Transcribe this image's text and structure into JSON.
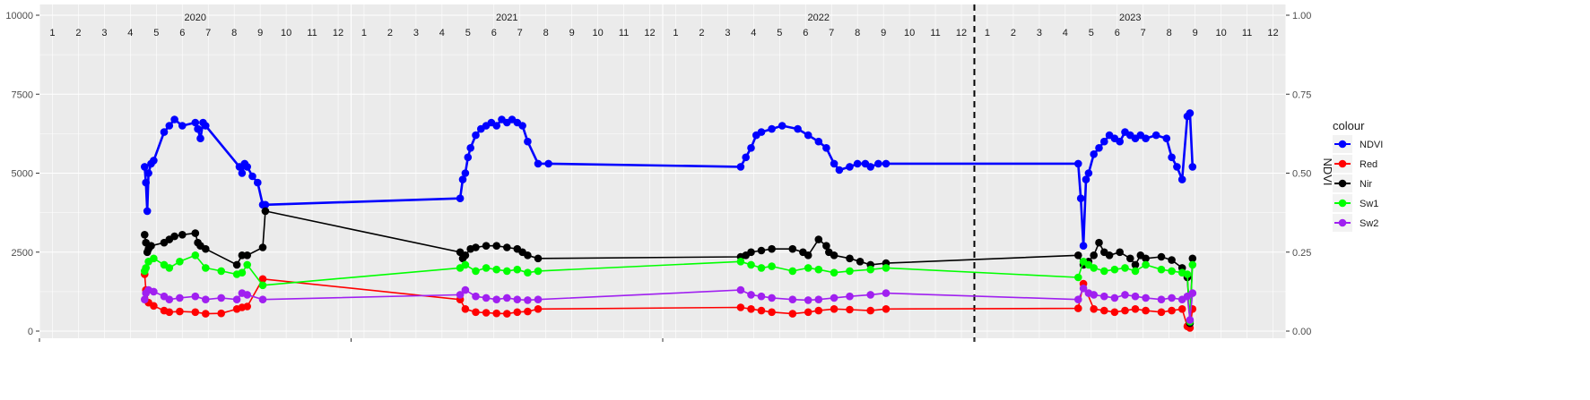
{
  "chart_data": {
    "type": "line",
    "title": "",
    "xlabel": "",
    "ylabel_left": "",
    "ylabel_right": "NDVI",
    "y_left_range": [
      0,
      10000
    ],
    "y_left_ticks": [
      "0",
      "2500",
      "5000",
      "7500",
      "10000"
    ],
    "y_right_ticks": [
      "0.00",
      "0.25",
      "0.50",
      "0.75",
      "1.00"
    ],
    "year_labels": [
      "2020",
      "2021",
      "2022",
      "2023"
    ],
    "month_labels": [
      "1",
      "2",
      "3",
      "4",
      "5",
      "6",
      "7",
      "8",
      "9",
      "10",
      "11",
      "12"
    ],
    "vline_month_index": 36,
    "grid": true,
    "legend": {
      "title": "colour",
      "position": "right",
      "entries": [
        {
          "label": "NDVI",
          "color": "#0000ff"
        },
        {
          "label": "Red",
          "color": "#ff0000"
        },
        {
          "label": "Nir",
          "color": "#000000"
        },
        {
          "label": "Sw1",
          "color": "#00ff00"
        },
        {
          "label": "Sw2",
          "color": "#a020f0"
        }
      ]
    },
    "x_unit": "months since Jan 2020",
    "series": [
      {
        "name": "NDVI",
        "color": "#0000ff",
        "x": [
          4.05,
          4.1,
          4.15,
          4.2,
          4.3,
          4.4,
          4.8,
          5.0,
          5.2,
          5.5,
          6.0,
          6.1,
          6.2,
          6.3,
          6.4,
          7.7,
          7.8,
          7.9,
          8.0,
          8.2,
          8.4,
          8.6,
          8.7,
          16.2,
          16.3,
          16.4,
          16.5,
          16.6,
          16.8,
          17.0,
          17.2,
          17.4,
          17.6,
          17.8,
          18.0,
          18.2,
          18.4,
          18.6,
          18.8,
          19.2,
          19.6,
          27.0,
          27.2,
          27.4,
          27.6,
          27.8,
          28.2,
          28.6,
          29.2,
          29.6,
          30.0,
          30.3,
          30.6,
          30.8,
          31.2,
          31.5,
          31.8,
          32.0,
          32.3,
          32.6,
          40.0,
          40.1,
          40.2,
          40.3,
          40.4,
          40.6,
          40.8,
          41.0,
          41.2,
          41.4,
          41.6,
          41.8,
          42.0,
          42.2,
          42.4,
          42.6,
          43.0,
          43.4,
          43.6,
          43.8,
          44.0,
          44.2,
          44.3,
          44.4
        ],
        "values": [
          0.52,
          0.47,
          0.38,
          0.5,
          0.53,
          0.54,
          0.63,
          0.65,
          0.67,
          0.65,
          0.66,
          0.64,
          0.61,
          0.66,
          0.65,
          0.52,
          0.5,
          0.53,
          0.52,
          0.49,
          0.47,
          0.4,
          0.4,
          0.42,
          0.48,
          0.5,
          0.55,
          0.58,
          0.62,
          0.64,
          0.65,
          0.66,
          0.65,
          0.67,
          0.66,
          0.67,
          0.66,
          0.65,
          0.6,
          0.53,
          0.53,
          0.52,
          0.55,
          0.58,
          0.62,
          0.63,
          0.64,
          0.65,
          0.64,
          0.62,
          0.6,
          0.58,
          0.53,
          0.51,
          0.52,
          0.53,
          0.53,
          0.52,
          0.53,
          0.53,
          0.53,
          0.42,
          0.27,
          0.48,
          0.5,
          0.56,
          0.58,
          0.6,
          0.62,
          0.61,
          0.6,
          0.63,
          0.62,
          0.61,
          0.62,
          0.61,
          0.62,
          0.61,
          0.55,
          0.52,
          0.48,
          0.68,
          0.69,
          0.52
        ]
      },
      {
        "name": "Red",
        "color": "#ff0000",
        "x": [
          4.05,
          4.1,
          4.2,
          4.4,
          4.8,
          5.0,
          5.4,
          6.0,
          6.4,
          7.0,
          7.6,
          7.8,
          8.0,
          8.6,
          16.2,
          16.4,
          16.8,
          17.2,
          17.6,
          18.0,
          18.4,
          18.8,
          19.2,
          27.0,
          27.4,
          27.8,
          28.2,
          29.0,
          29.6,
          30.0,
          30.6,
          31.2,
          32.0,
          32.6,
          40.0,
          40.2,
          40.6,
          41.0,
          41.4,
          41.8,
          42.2,
          42.6,
          43.2,
          43.6,
          44.0,
          44.2,
          44.3,
          44.4
        ],
        "values": [
          1800,
          1300,
          900,
          800,
          650,
          600,
          620,
          600,
          550,
          560,
          700,
          750,
          780,
          1650,
          1000,
          700,
          600,
          580,
          560,
          550,
          600,
          620,
          700,
          750,
          700,
          650,
          600,
          550,
          600,
          650,
          700,
          680,
          650,
          700,
          720,
          1500,
          700,
          650,
          600,
          650,
          700,
          650,
          600,
          650,
          700,
          150,
          100,
          700
        ]
      },
      {
        "name": "Nir",
        "color": "#000000",
        "x": [
          4.05,
          4.1,
          4.15,
          4.2,
          4.3,
          4.8,
          5.0,
          5.2,
          5.5,
          6.0,
          6.1,
          6.2,
          6.4,
          7.6,
          7.8,
          8.0,
          8.6,
          8.7,
          16.2,
          16.3,
          16.4,
          16.6,
          16.8,
          17.2,
          17.6,
          18.0,
          18.4,
          18.6,
          18.8,
          19.2,
          27.0,
          27.2,
          27.4,
          27.8,
          28.2,
          29.0,
          29.4,
          29.6,
          30.0,
          30.3,
          30.4,
          30.6,
          31.2,
          31.6,
          32.0,
          32.6,
          40.0,
          40.2,
          40.4,
          40.6,
          40.8,
          41.0,
          41.2,
          41.6,
          42.0,
          42.2,
          42.4,
          42.6,
          43.2,
          43.6,
          44.0,
          44.2,
          44.3,
          44.4
        ],
        "values": [
          3050,
          2800,
          2500,
          2600,
          2700,
          2800,
          2900,
          3000,
          3050,
          3100,
          2800,
          2700,
          2600,
          2100,
          2400,
          2400,
          2650,
          3800,
          2500,
          2300,
          2400,
          2600,
          2650,
          2700,
          2700,
          2650,
          2600,
          2500,
          2400,
          2300,
          2350,
          2400,
          2500,
          2550,
          2600,
          2600,
          2500,
          2400,
          2900,
          2700,
          2500,
          2400,
          2300,
          2200,
          2100,
          2150,
          2400,
          2100,
          2200,
          2400,
          2800,
          2500,
          2400,
          2500,
          2300,
          2100,
          2400,
          2300,
          2350,
          2250,
          2000,
          1700,
          250,
          2300
        ]
      },
      {
        "name": "Sw1",
        "color": "#00ff00",
        "x": [
          4.05,
          4.1,
          4.2,
          4.4,
          4.8,
          5.0,
          5.4,
          6.0,
          6.4,
          7.0,
          7.6,
          7.8,
          8.0,
          8.6,
          16.2,
          16.4,
          16.8,
          17.2,
          17.6,
          18.0,
          18.4,
          18.8,
          19.2,
          27.0,
          27.4,
          27.8,
          28.2,
          29.0,
          29.6,
          30.0,
          30.6,
          31.2,
          32.0,
          32.6,
          40.0,
          40.2,
          40.4,
          40.6,
          41.0,
          41.4,
          41.8,
          42.2,
          42.6,
          43.2,
          43.6,
          44.0,
          44.2,
          44.3,
          44.4
        ],
        "values": [
          1900,
          2000,
          2200,
          2300,
          2100,
          2000,
          2200,
          2400,
          2000,
          1900,
          1800,
          1850,
          2100,
          1450,
          2000,
          2100,
          1900,
          2000,
          1950,
          1900,
          1950,
          1850,
          1900,
          2200,
          2100,
          2000,
          2050,
          1900,
          2000,
          1950,
          1850,
          1900,
          1950,
          2000,
          1700,
          2200,
          2100,
          2000,
          1900,
          1950,
          2000,
          1900,
          2100,
          1950,
          1900,
          1850,
          1800,
          300,
          2100
        ]
      },
      {
        "name": "Sw2",
        "color": "#a020f0",
        "x": [
          4.05,
          4.1,
          4.2,
          4.4,
          4.8,
          5.0,
          5.4,
          6.0,
          6.4,
          7.0,
          7.6,
          7.8,
          8.0,
          8.6,
          16.2,
          16.4,
          16.8,
          17.2,
          17.6,
          18.0,
          18.4,
          18.8,
          19.2,
          27.0,
          27.4,
          27.8,
          28.2,
          29.0,
          29.6,
          30.0,
          30.6,
          31.2,
          32.0,
          32.6,
          40.0,
          40.2,
          40.4,
          40.6,
          41.0,
          41.4,
          41.8,
          42.2,
          42.6,
          43.2,
          43.6,
          44.0,
          44.2,
          44.3,
          44.4
        ],
        "values": [
          1000,
          1200,
          1300,
          1250,
          1100,
          1000,
          1050,
          1100,
          1000,
          1050,
          1000,
          1200,
          1150,
          1000,
          1150,
          1300,
          1100,
          1050,
          1000,
          1050,
          1000,
          980,
          1000,
          1300,
          1150,
          1100,
          1050,
          1000,
          980,
          1000,
          1050,
          1100,
          1150,
          1200,
          1000,
          1350,
          1200,
          1150,
          1100,
          1050,
          1150,
          1100,
          1050,
          1000,
          1050,
          1000,
          1100,
          350,
          1200
        ]
      }
    ]
  }
}
